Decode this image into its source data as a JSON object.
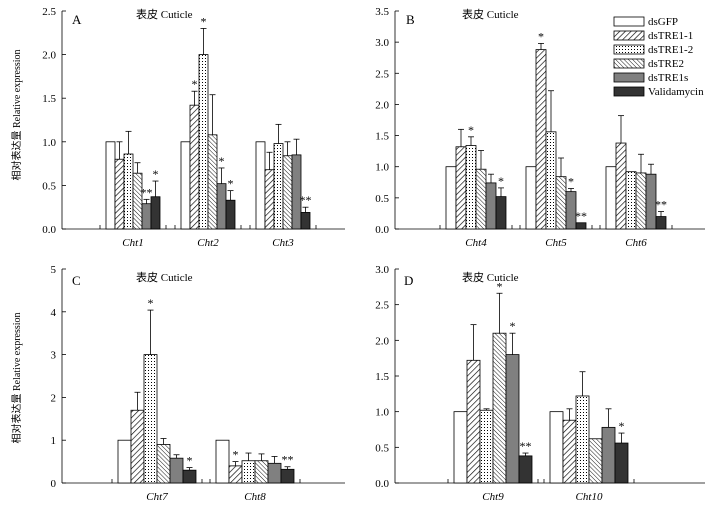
{
  "legend": {
    "placement": "top-right",
    "entries": [
      "dsGFP",
      "dsTRE1-1",
      "dsTRE1-2",
      "dsTRE2",
      "dsTRE1s",
      "Validamycin"
    ]
  },
  "chart_data": [
    {
      "type": "bar",
      "panel_label": "A",
      "title": "表皮 Cuticle",
      "ylabel": "相对表达量 Relative expression",
      "xlabel": "",
      "ylim": [
        0,
        2.5
      ],
      "yticks": [
        "0.0",
        "0.5",
        "1.0",
        "1.5",
        "2.0",
        "2.5"
      ],
      "categories": [
        "Cht1",
        "Cht2",
        "Cht3"
      ],
      "series": [
        {
          "name": "dsGFP",
          "values": [
            1.0,
            1.0,
            1.0
          ],
          "errors": [
            0.0,
            0.0,
            0.0
          ],
          "sig": [
            "",
            "",
            ""
          ]
        },
        {
          "name": "dsTRE1-1",
          "values": [
            0.8,
            1.42,
            0.68
          ],
          "errors": [
            0.2,
            0.16,
            0.2
          ],
          "sig": [
            "",
            "*",
            ""
          ]
        },
        {
          "name": "dsTRE1-2",
          "values": [
            0.86,
            2.0,
            0.98
          ],
          "errors": [
            0.26,
            0.3,
            0.22
          ],
          "sig": [
            "",
            "*",
            ""
          ]
        },
        {
          "name": "dsTRE2",
          "values": [
            0.64,
            1.08,
            0.84
          ],
          "errors": [
            0.12,
            0.46,
            0.16
          ],
          "sig": [
            "",
            "",
            ""
          ]
        },
        {
          "name": "dsTRE1s",
          "values": [
            0.29,
            0.52,
            0.85
          ],
          "errors": [
            0.05,
            0.18,
            0.18
          ],
          "sig": [
            "**",
            "*",
            ""
          ]
        },
        {
          "name": "Validamycin",
          "values": [
            0.37,
            0.33,
            0.19
          ],
          "errors": [
            0.18,
            0.11,
            0.06
          ],
          "sig": [
            "*",
            "*",
            "**"
          ]
        }
      ]
    },
    {
      "type": "bar",
      "panel_label": "B",
      "title": "表皮 Cuticle",
      "ylabel": "",
      "xlabel": "",
      "ylim": [
        0,
        3.5
      ],
      "yticks": [
        "0.0",
        "0.5",
        "1.0",
        "1.5",
        "2.0",
        "2.5",
        "3.0",
        "3.5"
      ],
      "categories": [
        "Cht4",
        "Cht5",
        "Cht6"
      ],
      "series": [
        {
          "name": "dsGFP",
          "values": [
            1.0,
            1.0,
            1.0
          ],
          "errors": [
            0.0,
            0.0,
            0.0
          ],
          "sig": [
            "",
            "",
            ""
          ]
        },
        {
          "name": "dsTRE1-1",
          "values": [
            1.32,
            2.88,
            1.38
          ],
          "errors": [
            0.28,
            0.1,
            0.44
          ],
          "sig": [
            "",
            "*",
            ""
          ]
        },
        {
          "name": "dsTRE1-2",
          "values": [
            1.34,
            1.56,
            0.92
          ],
          "errors": [
            0.14,
            0.66,
            0.0
          ],
          "sig": [
            "*",
            "",
            ""
          ]
        },
        {
          "name": "dsTRE2",
          "values": [
            0.96,
            0.84,
            0.9
          ],
          "errors": [
            0.3,
            0.3,
            0.3
          ],
          "sig": [
            "",
            "",
            ""
          ]
        },
        {
          "name": "dsTRE1s",
          "values": [
            0.74,
            0.6,
            0.88
          ],
          "errors": [
            0.14,
            0.05,
            0.16
          ],
          "sig": [
            "",
            "*",
            ""
          ]
        },
        {
          "name": "Validamycin",
          "values": [
            0.52,
            0.1,
            0.2
          ],
          "errors": [
            0.14,
            0.0,
            0.08
          ],
          "sig": [
            "*",
            "**",
            "**"
          ]
        }
      ]
    },
    {
      "type": "bar",
      "panel_label": "C",
      "title": "表皮 Cuticle",
      "ylabel": "相对表达量 Relative expression",
      "xlabel": "",
      "ylim": [
        0,
        5
      ],
      "yticks": [
        "0",
        "1",
        "2",
        "3",
        "4",
        "5"
      ],
      "categories": [
        "Cht7",
        "Cht8"
      ],
      "series": [
        {
          "name": "dsGFP",
          "values": [
            1.0,
            1.0
          ],
          "errors": [
            0.0,
            0.0
          ],
          "sig": [
            "",
            ""
          ]
        },
        {
          "name": "dsTRE1-1",
          "values": [
            1.7,
            0.4
          ],
          "errors": [
            0.42,
            0.1
          ],
          "sig": [
            "",
            "*"
          ]
        },
        {
          "name": "dsTRE1-2",
          "values": [
            3.0,
            0.52
          ],
          "errors": [
            1.04,
            0.18
          ],
          "sig": [
            "*",
            ""
          ]
        },
        {
          "name": "dsTRE2",
          "values": [
            0.9,
            0.52
          ],
          "errors": [
            0.14,
            0.16
          ],
          "sig": [
            "",
            ""
          ]
        },
        {
          "name": "dsTRE1s",
          "values": [
            0.58,
            0.46
          ],
          "errors": [
            0.08,
            0.16
          ],
          "sig": [
            "",
            ""
          ]
        },
        {
          "name": "Validamycin",
          "values": [
            0.3,
            0.32
          ],
          "errors": [
            0.06,
            0.06
          ],
          "sig": [
            "*",
            "**"
          ]
        }
      ]
    },
    {
      "type": "bar",
      "panel_label": "D",
      "title": "表皮 Cuticle",
      "ylabel": "",
      "xlabel": "",
      "ylim": [
        0,
        3.0
      ],
      "yticks": [
        "0.0",
        "0.5",
        "1.0",
        "1.5",
        "2.0",
        "2.5",
        "3.0"
      ],
      "categories": [
        "Cht9",
        "Cht10"
      ],
      "series": [
        {
          "name": "dsGFP",
          "values": [
            1.0,
            1.0
          ],
          "errors": [
            0.0,
            0.0
          ],
          "sig": [
            "",
            ""
          ]
        },
        {
          "name": "dsTRE1-1",
          "values": [
            1.72,
            0.88
          ],
          "errors": [
            0.5,
            0.16
          ],
          "sig": [
            "",
            ""
          ]
        },
        {
          "name": "dsTRE1-2",
          "values": [
            1.02,
            1.22
          ],
          "errors": [
            0.02,
            0.34
          ],
          "sig": [
            "",
            ""
          ]
        },
        {
          "name": "dsTRE2",
          "values": [
            2.1,
            0.62
          ],
          "errors": [
            0.56,
            0.0
          ],
          "sig": [
            "*",
            ""
          ]
        },
        {
          "name": "dsTRE1s",
          "values": [
            1.8,
            0.78
          ],
          "errors": [
            0.3,
            0.26
          ],
          "sig": [
            "*",
            ""
          ]
        },
        {
          "name": "Validamycin",
          "values": [
            0.38,
            0.56
          ],
          "errors": [
            0.04,
            0.14
          ],
          "sig": [
            "**",
            "*"
          ]
        }
      ]
    }
  ]
}
